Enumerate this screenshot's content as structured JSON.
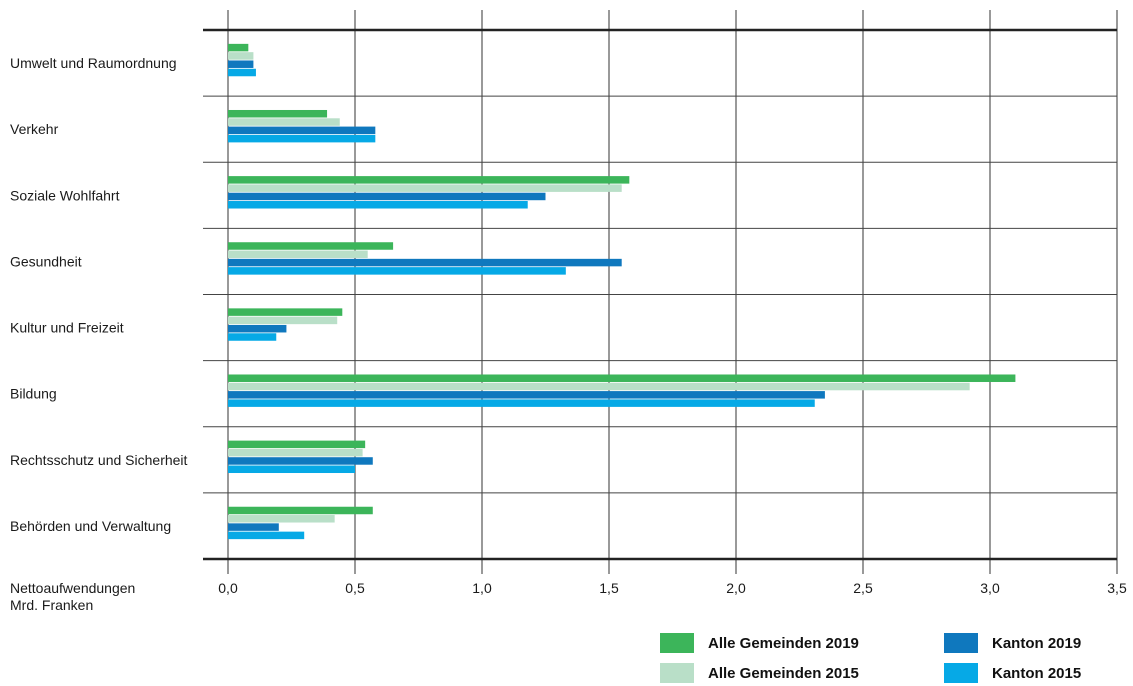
{
  "chart_data": {
    "type": "bar",
    "orientation": "horizontal",
    "categories": [
      "Umwelt und Raumordnung",
      "Verkehr",
      "Soziale Wohlfahrt",
      "Gesundheit",
      "Kultur und Freizeit",
      "Bildung",
      "Rechtsschutz und Sicherheit",
      "Behörden und Verwaltung"
    ],
    "series": [
      {
        "name": "Alle Gemeinden 2019",
        "color": "#3cb55a",
        "values": [
          0.08,
          0.39,
          1.58,
          0.65,
          0.45,
          3.1,
          0.54,
          0.57
        ]
      },
      {
        "name": "Alle Gemeinden 2015",
        "color": "#b9dfc8",
        "values": [
          0.1,
          0.44,
          1.55,
          0.55,
          0.43,
          2.92,
          0.53,
          0.42
        ]
      },
      {
        "name": "Kanton 2019",
        "color": "#0f78be",
        "values": [
          0.1,
          0.58,
          1.25,
          1.55,
          0.23,
          2.35,
          0.57,
          0.2
        ]
      },
      {
        "name": "Kanton 2015",
        "color": "#06a9e6",
        "values": [
          0.11,
          0.58,
          1.18,
          1.33,
          0.19,
          2.31,
          0.5,
          0.3
        ]
      }
    ],
    "xlabel": [
      "Nettoaufwendungen",
      "Mrd. Franken"
    ],
    "xlim": [
      0,
      3.5
    ],
    "ticks": [
      0,
      0.5,
      1.0,
      1.5,
      2.0,
      2.5,
      3.0,
      3.5
    ],
    "tick_labels": [
      "0,0",
      "0,5",
      "1,0",
      "1,5",
      "2,0",
      "2,5",
      "3,0",
      "3,5"
    ],
    "grid": true,
    "legend_position": "bottom-right"
  }
}
